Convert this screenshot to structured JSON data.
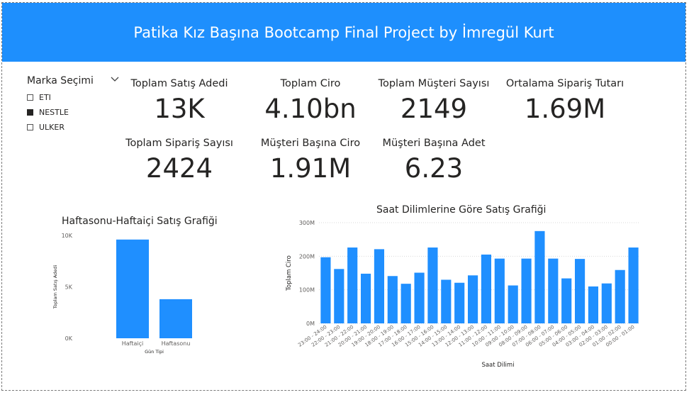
{
  "header": {
    "title": "Patika Kız Başına Bootcamp Final Project by İmregül Kurt"
  },
  "slicer": {
    "title": "Marka Seçimi",
    "items": [
      {
        "label": "ETI",
        "checked": false
      },
      {
        "label": "NESTLE",
        "checked": true
      },
      {
        "label": "ULKER",
        "checked": false
      }
    ]
  },
  "kpis": {
    "total_sales_qty": {
      "label": "Toplam Satış Adedi",
      "value": "13K"
    },
    "total_revenue": {
      "label": "Toplam Ciro",
      "value": "4.10bn"
    },
    "total_customers": {
      "label": "Toplam Müşteri Sayısı",
      "value": "2149"
    },
    "avg_order_value": {
      "label": "Ortalama Sipariş Tutarı",
      "value": "1.69M"
    },
    "total_orders": {
      "label": "Toplam Sipariş Sayısı",
      "value": "2424"
    },
    "revenue_per_customer": {
      "label": "Müşteri Başına Ciro",
      "value": "1.91M"
    },
    "qty_per_customer": {
      "label": "Müşteri Başına Adet",
      "value": "6.23"
    }
  },
  "colors": {
    "accent": "#1e8ffd",
    "bar": "#1f8fff",
    "text": "#252423",
    "axis_text": "#605e5c"
  },
  "chart_data": [
    {
      "type": "bar",
      "title": "Haftasonu-Haftaiçi Satış Grafiği",
      "xlabel": "Gün Tipi",
      "ylabel": "Toplam Satış Adedi",
      "categories": [
        "Haftaiçi",
        "Haftasonu"
      ],
      "values": [
        9600,
        3800
      ],
      "ylim": [
        0,
        10000
      ],
      "yticks": [
        "0K",
        "5K",
        "10K"
      ],
      "grid": false
    },
    {
      "type": "bar",
      "title": "Saat Dilimlerine Göre Satış Grafiği",
      "xlabel": "Saat Dilimi",
      "ylabel": "Toplam Ciro",
      "categories": [
        "23:00 - 24:00",
        "22:00 - 23:00",
        "21:00 - 22:00",
        "20:00 - 21:00",
        "19:00 - 20:00",
        "18:00 - 19:00",
        "17:00 - 18:00",
        "16:00 - 17:00",
        "15:00 - 16:00",
        "14:00 - 15:00",
        "13:00 - 14:00",
        "12:00 - 13:00",
        "11:00 - 12:00",
        "10:00 - 11:00",
        "09:00 - 10:00",
        "08:00 - 09:00",
        "07:00 - 08:00",
        "06:00 - 07:00",
        "05:00 - 06:00",
        "04:00 - 05:00",
        "03:00 - 04:00",
        "02:00 - 03:00",
        "01:00 - 02:00",
        "00:00 - 01:00"
      ],
      "values": [
        197,
        162,
        226,
        148,
        221,
        141,
        118,
        151,
        226,
        130,
        121,
        143,
        205,
        193,
        113,
        193,
        275,
        193,
        134,
        192,
        110,
        119,
        159,
        226
      ],
      "unit": "M",
      "ylim": [
        0,
        300
      ],
      "yticks": [
        "0M",
        "100M",
        "200M",
        "300M"
      ],
      "grid": true
    }
  ]
}
